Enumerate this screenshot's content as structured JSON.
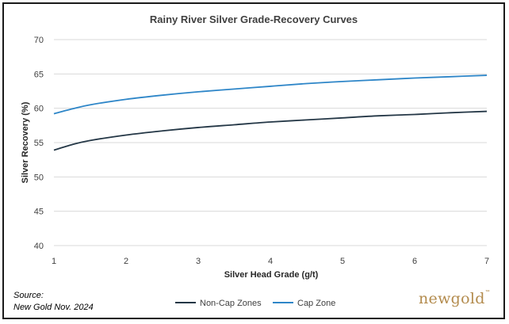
{
  "chart_data": {
    "type": "line",
    "title": "Rainy River Silver Grade-Recovery Curves",
    "xlabel": "Silver Head Grade (g/t)",
    "ylabel": "Silver Recovery (%)",
    "xlim": [
      1,
      7
    ],
    "ylim": [
      40,
      70
    ],
    "xticks": [
      "1",
      "2",
      "3",
      "4",
      "5",
      "6",
      "7"
    ],
    "yticks": [
      "40",
      "45",
      "50",
      "55",
      "60",
      "65",
      "70"
    ],
    "grid": "horizontal",
    "legend": "bottom",
    "series": [
      {
        "name": "Non-Cap Zones",
        "color": "#243746",
        "x": [
          1,
          1.25,
          1.5,
          2,
          2.5,
          3,
          3.5,
          4,
          4.5,
          5,
          5.5,
          6,
          6.5,
          7
        ],
        "values": [
          53.9,
          54.7,
          55.3,
          56.1,
          56.7,
          57.2,
          57.6,
          58.0,
          58.3,
          58.6,
          58.9,
          59.1,
          59.35,
          59.55
        ]
      },
      {
        "name": "Cap Zone",
        "color": "#2e86c8",
        "x": [
          1,
          1.25,
          1.5,
          2,
          2.5,
          3,
          3.5,
          4,
          4.5,
          5,
          5.5,
          6,
          6.5,
          7
        ],
        "values": [
          59.2,
          59.9,
          60.5,
          61.3,
          61.9,
          62.4,
          62.8,
          63.2,
          63.6,
          63.9,
          64.15,
          64.4,
          64.6,
          64.8
        ]
      }
    ]
  },
  "source": {
    "line1": "Source:",
    "line2": "New Gold Nov. 2024"
  },
  "logo": {
    "text": "newgold",
    "mark": "™"
  }
}
